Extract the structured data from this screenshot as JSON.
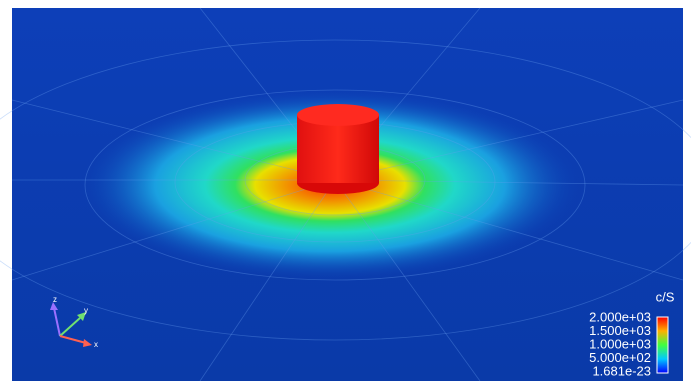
{
  "colorbar": {
    "title": "c/S",
    "ticks": [
      "2.000e+03",
      "1.500e+03",
      "1.000e+03",
      "5.000e+02",
      "1.681e-23"
    ]
  },
  "axes": {
    "z": "z",
    "y": "y",
    "x": "x"
  }
}
